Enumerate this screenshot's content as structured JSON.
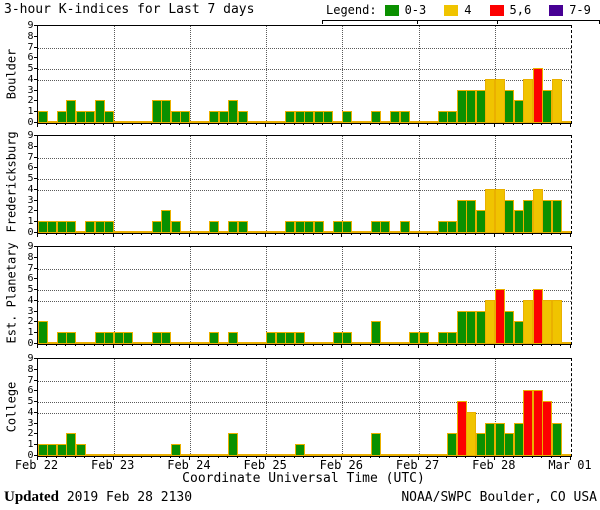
{
  "footer": {
    "updated_label": "Updated",
    "updated_value": " 2019 Feb 28 2130",
    "credit": "NOAA/SWPC Boulder, CO USA"
  },
  "colors": {
    "green": "#0a9000",
    "yellow": "#f0c400",
    "red": "#fd0000",
    "purple": "#470094",
    "bar_outline": "#eab000",
    "grid": "#5a5a5a",
    "frame": "#000000"
  },
  "chart_data": {
    "type": "bar",
    "title": "3-hour K-indices for Last 7 days",
    "xlabel": "Coordinate Universal Time (UTC)",
    "x_tick_labels": [
      "Feb 22",
      "Feb 23",
      "Feb 24",
      "Feb 25",
      "Feb 26",
      "Feb 27",
      "Feb 28",
      "Mar 01"
    ],
    "y_tick_labels": [
      "0",
      "1",
      "2",
      "3",
      "4",
      "5",
      "6",
      "7",
      "8",
      "9"
    ],
    "ylim": [
      0,
      9
    ],
    "days": 7,
    "bars_per_day": 8,
    "bar_interval_hours": 3,
    "h_gridlines_at": [
      4,
      5,
      7
    ],
    "grid": true,
    "legend_position": "top-right",
    "legend": {
      "label": "Legend:",
      "entries": [
        {
          "label": "0-3",
          "color_key": "green"
        },
        {
          "label": "4",
          "color_key": "yellow"
        },
        {
          "label": "5,6",
          "color_key": "red"
        },
        {
          "label": "7-9",
          "color_key": "purple"
        }
      ]
    },
    "color_rules": [
      {
        "max": 3,
        "color_key": "green"
      },
      {
        "max": 4,
        "color_key": "yellow"
      },
      {
        "max": 6,
        "color_key": "red"
      },
      {
        "max": 9,
        "color_key": "purple"
      }
    ],
    "series": [
      {
        "name": "Boulder",
        "values": [
          1,
          0,
          1,
          2,
          1,
          1,
          2,
          1,
          0,
          0,
          0,
          0,
          2,
          2,
          1,
          1,
          0,
          0,
          1,
          1,
          2,
          1,
          0,
          0,
          0,
          0,
          1,
          1,
          1,
          1,
          1,
          0,
          1,
          0,
          0,
          1,
          0,
          1,
          1,
          0,
          0,
          0,
          1,
          1,
          3,
          3,
          3,
          4,
          4,
          3,
          2,
          4,
          5,
          3,
          4,
          0
        ]
      },
      {
        "name": "Fredericksburg",
        "values": [
          1,
          1,
          1,
          1,
          0,
          1,
          1,
          1,
          0,
          0,
          0,
          0,
          1,
          2,
          1,
          0,
          0,
          0,
          1,
          0,
          1,
          1,
          0,
          0,
          0,
          0,
          1,
          1,
          1,
          1,
          0,
          1,
          1,
          0,
          0,
          1,
          1,
          0,
          1,
          0,
          0,
          0,
          1,
          1,
          3,
          3,
          2,
          4,
          4,
          3,
          2,
          3,
          4,
          3,
          3,
          0
        ]
      },
      {
        "name": "Est. Planetary",
        "values": [
          2,
          0,
          1,
          1,
          0,
          0,
          1,
          1,
          1,
          1,
          0,
          0,
          1,
          1,
          0,
          0,
          0,
          0,
          1,
          0,
          1,
          0,
          0,
          0,
          1,
          1,
          1,
          1,
          0,
          0,
          0,
          1,
          1,
          0,
          0,
          2,
          0,
          0,
          0,
          1,
          1,
          0,
          1,
          1,
          3,
          3,
          3,
          4,
          5,
          3,
          2,
          4,
          5,
          4,
          4,
          0
        ]
      },
      {
        "name": "College",
        "values": [
          1,
          1,
          1,
          2,
          1,
          0,
          0,
          0,
          0,
          0,
          0,
          0,
          0,
          0,
          1,
          0,
          0,
          0,
          0,
          0,
          2,
          0,
          0,
          0,
          0,
          0,
          0,
          1,
          0,
          0,
          0,
          0,
          0,
          0,
          0,
          2,
          0,
          0,
          0,
          0,
          0,
          0,
          0,
          2,
          5,
          4,
          2,
          3,
          3,
          2,
          3,
          6,
          6,
          5,
          3,
          0
        ]
      }
    ]
  }
}
